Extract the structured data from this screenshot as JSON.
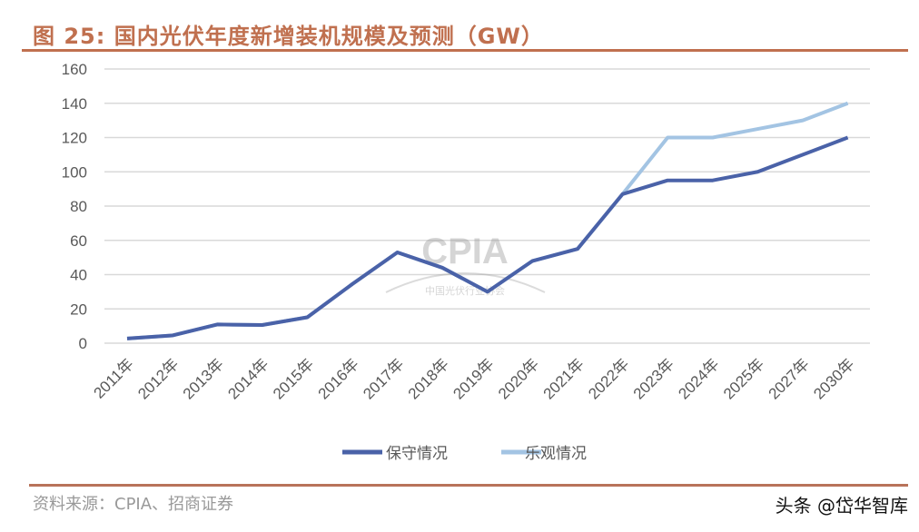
{
  "title": "图 25:  国内光伏年度新增装机规模及预测（GW）",
  "source": "资料来源：CPIA、招商证券",
  "watermark": "头条 @岱华智库",
  "logo_text": "CPIA 中国光伏行业协会",
  "chart_data": {
    "type": "line",
    "categories": [
      "2011年",
      "2012年",
      "2013年",
      "2014年",
      "2015年",
      "2016年",
      "2017年",
      "2018年",
      "2019年",
      "2020年",
      "2021年",
      "2022年",
      "2023年",
      "2024年",
      "2025年",
      "2027年",
      "2030年"
    ],
    "yticks": [
      0,
      20,
      40,
      60,
      80,
      100,
      120,
      140,
      160
    ],
    "ylim": [
      0,
      160
    ],
    "grid": true,
    "legend": "bottom",
    "series": [
      {
        "name": "保守情况",
        "color": "#4a62a8",
        "values": [
          2.7,
          4.5,
          10.9,
          10.6,
          15.1,
          34.5,
          53,
          44,
          30,
          48,
          55,
          87,
          95,
          95,
          100,
          110,
          120
        ]
      },
      {
        "name": "乐观情况",
        "color": "#a3c4e3",
        "values": [
          2.7,
          4.5,
          10.9,
          10.6,
          15.1,
          34.5,
          53,
          44,
          30,
          48,
          55,
          87,
          120,
          120,
          125,
          130,
          140
        ]
      }
    ]
  }
}
